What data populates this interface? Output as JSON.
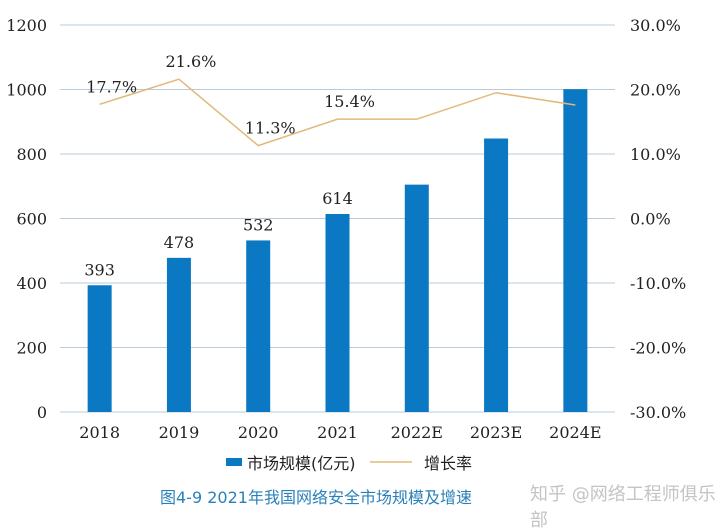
{
  "chart_data": {
    "type": "bar+line",
    "categories": [
      "2018",
      "2019",
      "2020",
      "2021",
      "2022E",
      "2023E",
      "2024E"
    ],
    "series": [
      {
        "name": "市场规模(亿元)",
        "type": "bar",
        "axis": "left",
        "values": [
          393,
          478,
          532,
          614,
          705,
          848,
          1001
        ],
        "data_labels": [
          "393",
          "478",
          "532",
          "614",
          "",
          "",
          ""
        ],
        "color": "#0a78c2"
      },
      {
        "name": "增长率",
        "type": "line",
        "axis": "right",
        "values": [
          17.7,
          21.6,
          11.3,
          15.4,
          15.4,
          19.5,
          17.6
        ],
        "data_labels": [
          "17.7%",
          "21.6%",
          "11.3%",
          "15.4%",
          "",
          "",
          ""
        ],
        "color": "#e0b97a"
      }
    ],
    "left_axis": {
      "ylim": [
        0,
        1200
      ],
      "ticks": [
        "0",
        "200",
        "400",
        "600",
        "800",
        "1000",
        "1200"
      ]
    },
    "right_axis": {
      "ylim": [
        -30,
        30
      ],
      "ticks": [
        "-30.0%",
        "-20.0%",
        "-10.0%",
        "0.0%",
        "10.0%",
        "20.0%",
        "30.0%"
      ]
    },
    "grid": true,
    "legend": "bottom"
  },
  "caption": "图4-9  2021年我国网络安全市场规模及增速",
  "watermark": "知乎 @网络工程师俱乐部"
}
